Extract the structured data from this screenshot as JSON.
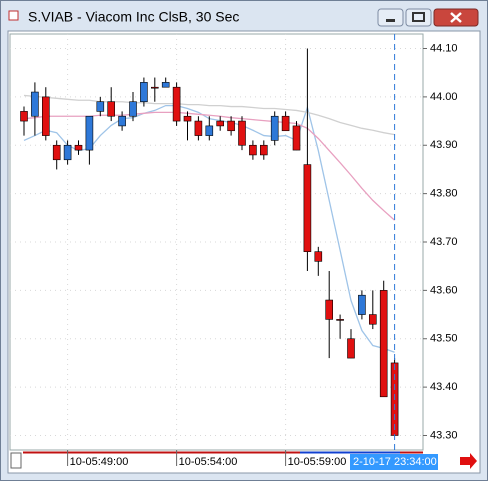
{
  "chart_data": {
    "type": "candlestick",
    "title": "S.VIAB - Viacom Inc ClsB, 30 Sec",
    "categories": [
      null,
      null,
      null,
      null,
      "10-05:49:00",
      null,
      null,
      null,
      null,
      null,
      null,
      null,
      null,
      null,
      "10-05:54:00",
      null,
      null,
      null,
      null,
      null,
      null,
      null,
      null,
      null,
      "10-05:59:00",
      null,
      null,
      null,
      null,
      null,
      null,
      null,
      null,
      null,
      null
    ],
    "open": [
      43.97,
      43.96,
      44.0,
      43.9,
      43.87,
      43.9,
      43.89,
      43.97,
      43.99,
      43.94,
      43.96,
      43.99,
      44.02,
      44.02,
      44.02,
      43.96,
      43.95,
      43.92,
      43.95,
      43.95,
      43.95,
      43.9,
      43.9,
      43.91,
      43.96,
      43.94,
      43.86,
      43.68,
      43.58,
      43.54,
      43.5,
      43.55,
      43.55,
      43.6,
      43.45
    ],
    "high": [
      43.98,
      44.03,
      44.02,
      43.91,
      43.91,
      43.91,
      43.96,
      44.0,
      44.02,
      43.97,
      44.01,
      44.04,
      44.04,
      44.04,
      44.03,
      43.97,
      43.96,
      43.96,
      43.96,
      43.96,
      43.96,
      43.91,
      43.91,
      43.97,
      43.97,
      43.95,
      44.1,
      43.69,
      43.64,
      43.55,
      43.52,
      43.6,
      43.6,
      43.62,
      43.46
    ],
    "low": [
      43.92,
      43.92,
      43.91,
      43.85,
      43.86,
      43.88,
      43.86,
      43.96,
      43.95,
      43.93,
      43.95,
      43.98,
      43.99,
      44.02,
      43.94,
      43.91,
      43.91,
      43.91,
      43.93,
      43.92,
      43.89,
      43.87,
      43.87,
      43.9,
      43.93,
      43.89,
      43.64,
      43.63,
      43.46,
      43.5,
      43.46,
      43.54,
      43.52,
      43.38,
      43.3
    ],
    "close": [
      43.95,
      44.01,
      43.92,
      43.87,
      43.9,
      43.89,
      43.96,
      43.99,
      43.96,
      43.96,
      43.99,
      44.03,
      44.02,
      44.03,
      43.95,
      43.95,
      43.92,
      43.94,
      43.94,
      43.93,
      43.9,
      43.88,
      43.88,
      43.96,
      43.93,
      43.89,
      43.68,
      43.66,
      43.54,
      43.54,
      43.46,
      43.59,
      43.53,
      43.38,
      43.3
    ],
    "up_color": "#2e78d8",
    "down_color": "#e01010",
    "overlays": [
      {
        "color": "#9fc4e8",
        "values": [
          43.91,
          43.92,
          43.931,
          43.926,
          43.9,
          43.889,
          43.893,
          43.92,
          43.941,
          43.955,
          43.957,
          43.966,
          43.972,
          43.982,
          43.982,
          43.976,
          43.968,
          43.955,
          43.951,
          43.947,
          43.941,
          43.931,
          43.92,
          43.918,
          43.92,
          43.91,
          43.978,
          43.889,
          43.786,
          43.683,
          43.579,
          43.517,
          43.486,
          43.48,
          43.472
        ]
      },
      {
        "color": "#e8a0c0",
        "values": [
          43.955,
          43.957,
          43.96,
          43.96,
          43.96,
          43.96,
          43.96,
          43.962,
          43.962,
          43.962,
          43.964,
          43.966,
          43.968,
          43.968,
          43.968,
          43.966,
          43.964,
          43.962,
          43.96,
          43.957,
          43.955,
          43.953,
          43.951,
          43.949,
          43.947,
          43.945,
          43.935,
          43.914,
          43.889,
          43.864,
          43.838,
          43.811,
          43.786,
          43.765,
          43.745
        ]
      },
      {
        "color": "#d0d0d0",
        "values": [
          44.003,
          44.001,
          43.999,
          43.997,
          43.995,
          43.993,
          43.993,
          43.99,
          43.99,
          43.99,
          43.988,
          43.988,
          43.986,
          43.986,
          43.986,
          43.984,
          43.984,
          43.982,
          43.982,
          43.98,
          43.98,
          43.978,
          43.976,
          43.976,
          43.974,
          43.972,
          43.968,
          43.962,
          43.955,
          43.947,
          43.941,
          43.935,
          43.931,
          43.926,
          43.922
        ]
      }
    ],
    "ylim": [
      43.27,
      44.13
    ],
    "yticks": [
      {
        "value": 44.1,
        "label": "44.10"
      },
      {
        "value": 44.0,
        "label": "44.00"
      },
      {
        "value": 43.9,
        "label": "43.90"
      },
      {
        "value": 43.8,
        "label": "43.80"
      },
      {
        "value": 43.7,
        "label": "43.70"
      },
      {
        "value": 43.6,
        "label": "43.60"
      },
      {
        "value": 43.5,
        "label": "43.50"
      },
      {
        "value": 43.4,
        "label": "43.40"
      },
      {
        "value": 43.3,
        "label": "43.30"
      }
    ],
    "grid": true,
    "crosshair_label": "2-10-17 23:34:00"
  }
}
